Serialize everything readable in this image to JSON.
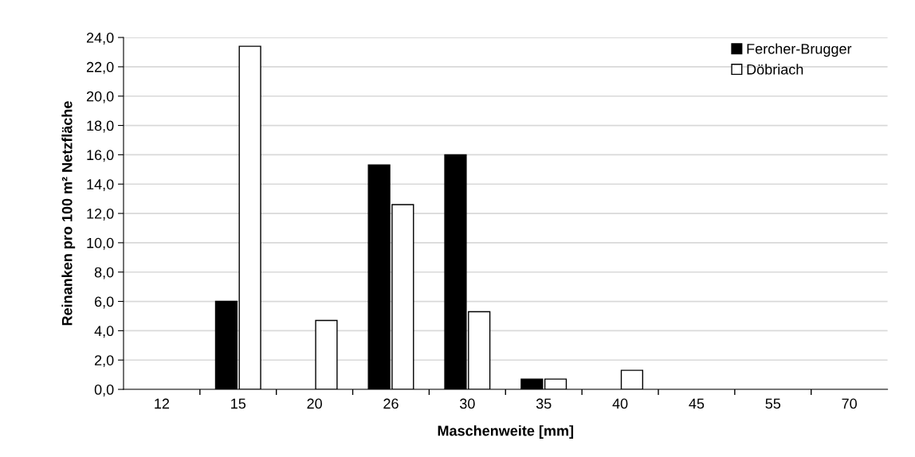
{
  "chart_data": {
    "type": "bar",
    "xlabel": "Maschenweite [mm]",
    "ylabel": "Reinanken pro 100 m² Netzfläche",
    "categories": [
      "12",
      "15",
      "20",
      "26",
      "30",
      "35",
      "40",
      "45",
      "55",
      "70"
    ],
    "series": [
      {
        "name": "Fercher-Brugger",
        "color": "#000000",
        "values": [
          0,
          6.0,
          0,
          15.3,
          16.0,
          0.7,
          0,
          0,
          0,
          0
        ]
      },
      {
        "name": "Döbriach",
        "color": "#ffffff",
        "values": [
          0,
          23.4,
          4.7,
          12.6,
          5.3,
          0.7,
          1.3,
          0,
          0,
          0
        ]
      }
    ],
    "ylim": [
      0,
      24
    ],
    "yticks": [
      {
        "value": 0,
        "label": "0,0"
      },
      {
        "value": 2,
        "label": "2,0"
      },
      {
        "value": 4,
        "label": "4,0"
      },
      {
        "value": 6,
        "label": "6,0"
      },
      {
        "value": 8,
        "label": "8,0"
      },
      {
        "value": 10,
        "label": "10,0"
      },
      {
        "value": 12,
        "label": "12,0"
      },
      {
        "value": 14,
        "label": "14,0"
      },
      {
        "value": 16,
        "label": "16,0"
      },
      {
        "value": 18,
        "label": "18,0"
      },
      {
        "value": 20,
        "label": "20,0"
      },
      {
        "value": 22,
        "label": "22,0"
      },
      {
        "value": 24,
        "label": "24,0"
      }
    ],
    "grid": "y",
    "legend": "top right"
  }
}
